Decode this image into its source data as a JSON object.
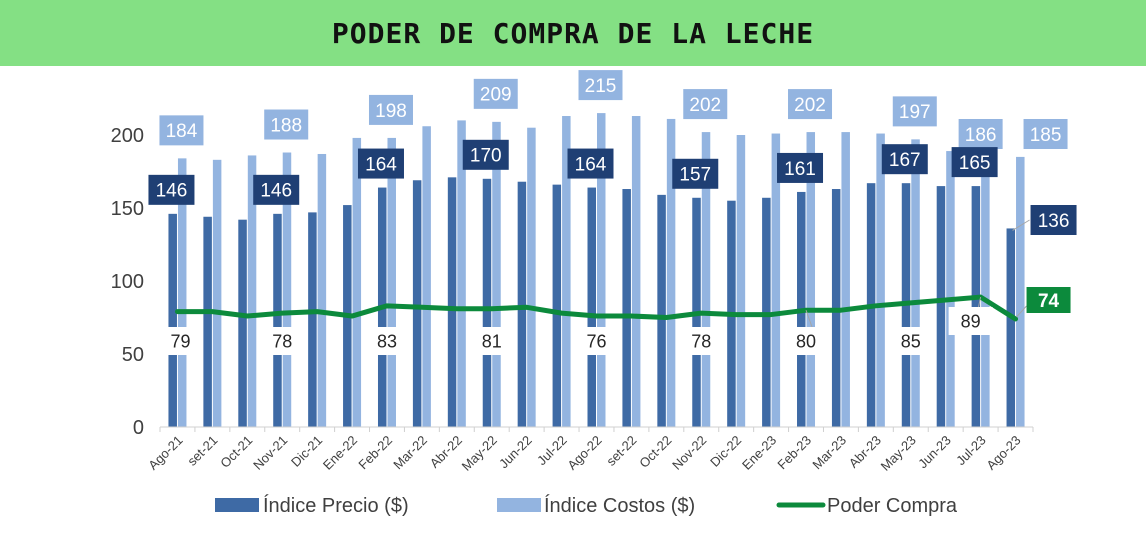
{
  "title_bar": {
    "background": "#84e084"
  },
  "chart_data": {
    "type": "bar",
    "title": "PODER DE COMPRA DE LA LECHE",
    "categories": [
      "Ago-21",
      "set-21",
      "Oct-21",
      "Nov-21",
      "Dic-21",
      "Ene-22",
      "Feb-22",
      "Mar-22",
      "Abr-22",
      "May-22",
      "Jun-22",
      "Jul-22",
      "Ago-22",
      "set-22",
      "Oct-22",
      "Nov-22",
      "Dic-22",
      "Ene-23",
      "Feb-23",
      "Mar-23",
      "Abr-23",
      "May-23",
      "Jun-23",
      "Jul-23",
      "Ago-23"
    ],
    "ylim": [
      0,
      220
    ],
    "yticks": [
      "0",
      "50",
      "100",
      "150",
      "200"
    ],
    "grid": false,
    "legend_position": "bottom",
    "series": [
      {
        "name": "Índice Precio ($)",
        "kind": "bar",
        "color": "#3e6aa5",
        "values": [
          146,
          144,
          142,
          146,
          147,
          152,
          164,
          169,
          171,
          170,
          168,
          166,
          164,
          163,
          159,
          157,
          155,
          157,
          161,
          163,
          167,
          167,
          165,
          165,
          136
        ],
        "labels": [
          "146",
          "",
          "",
          "146",
          "",
          "",
          "164",
          "",
          "",
          "170",
          "",
          "",
          "164",
          "",
          "",
          "157",
          "",
          "",
          "161",
          "",
          "",
          "167",
          "",
          "165",
          "136"
        ]
      },
      {
        "name": "Índice Costos ($)",
        "kind": "bar",
        "color": "#93b4e0",
        "values": [
          184,
          183,
          186,
          188,
          187,
          198,
          198,
          206,
          210,
          209,
          205,
          213,
          215,
          213,
          211,
          202,
          200,
          201,
          202,
          202,
          201,
          197,
          189,
          186,
          185
        ],
        "labels": [
          "184",
          "",
          "",
          "188",
          "",
          "",
          "198",
          "",
          "",
          "209",
          "",
          "",
          "215",
          "",
          "",
          "202",
          "",
          "",
          "202",
          "",
          "",
          "197",
          "",
          "186",
          "185"
        ]
      },
      {
        "name": "Poder Compra",
        "kind": "line",
        "color": "#0c8a3c",
        "values": [
          79,
          79,
          76,
          78,
          79,
          76,
          83,
          82,
          81,
          81,
          82,
          78,
          76,
          76,
          75,
          78,
          77,
          77,
          80,
          80,
          83,
          85,
          87,
          89,
          74
        ],
        "labels": [
          "79",
          "",
          "",
          "78",
          "",
          "",
          "83",
          "",
          "",
          "81",
          "",
          "",
          "76",
          "",
          "",
          "78",
          "",
          "",
          "80",
          "",
          "",
          "85",
          "",
          "89",
          "74"
        ]
      }
    ]
  }
}
